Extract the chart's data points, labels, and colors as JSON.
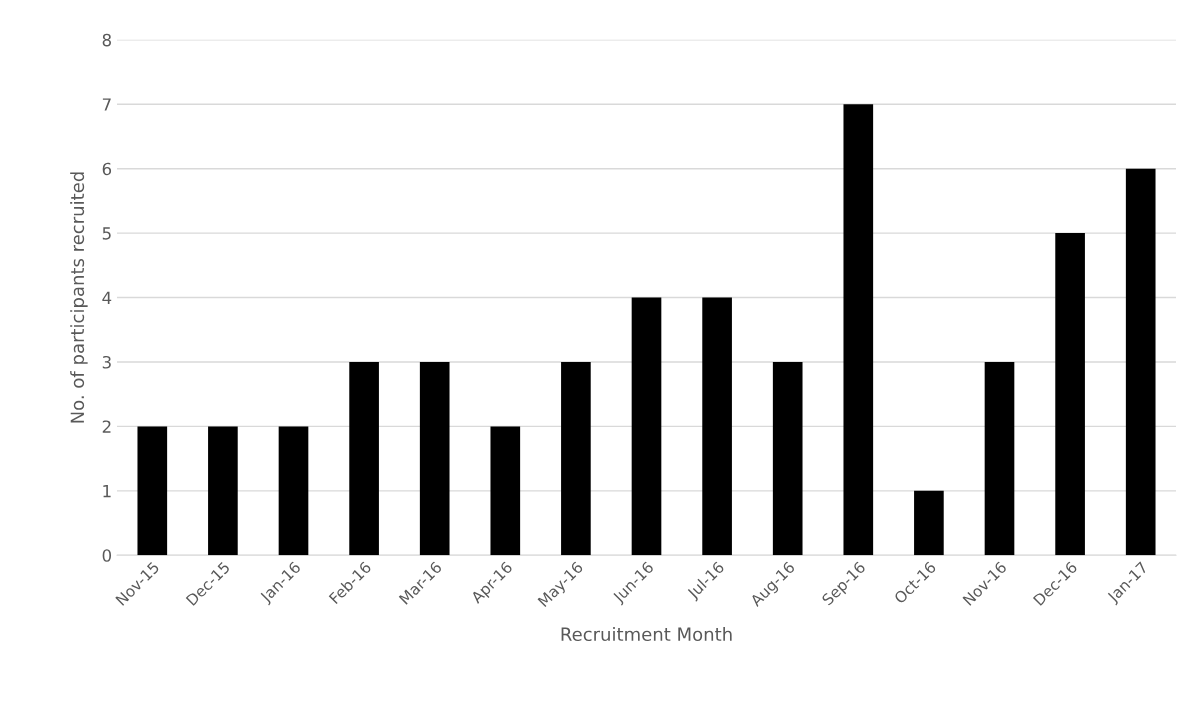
{
  "chart_data": {
    "type": "bar",
    "xlabel": "Recruitment Month",
    "ylabel": "No. of participants recruited",
    "categories": [
      "Nov-15",
      "Dec-15",
      "Jan-16",
      "Feb-16",
      "Mar-16",
      "Apr-16",
      "May-16",
      "Jun-16",
      "Jul-16",
      "Aug-16",
      "Sep-16",
      "Oct-16",
      "Nov-16",
      "Dec-16",
      "Jan-17"
    ],
    "values": [
      2,
      2,
      2,
      3,
      3,
      2,
      3,
      4,
      4,
      3,
      7,
      1,
      3,
      5,
      6
    ],
    "color": "#000000",
    "ylim": [
      0,
      8
    ],
    "yticks": [
      0,
      1,
      2,
      3,
      4,
      5,
      6,
      7,
      8
    ],
    "grid": "y"
  }
}
